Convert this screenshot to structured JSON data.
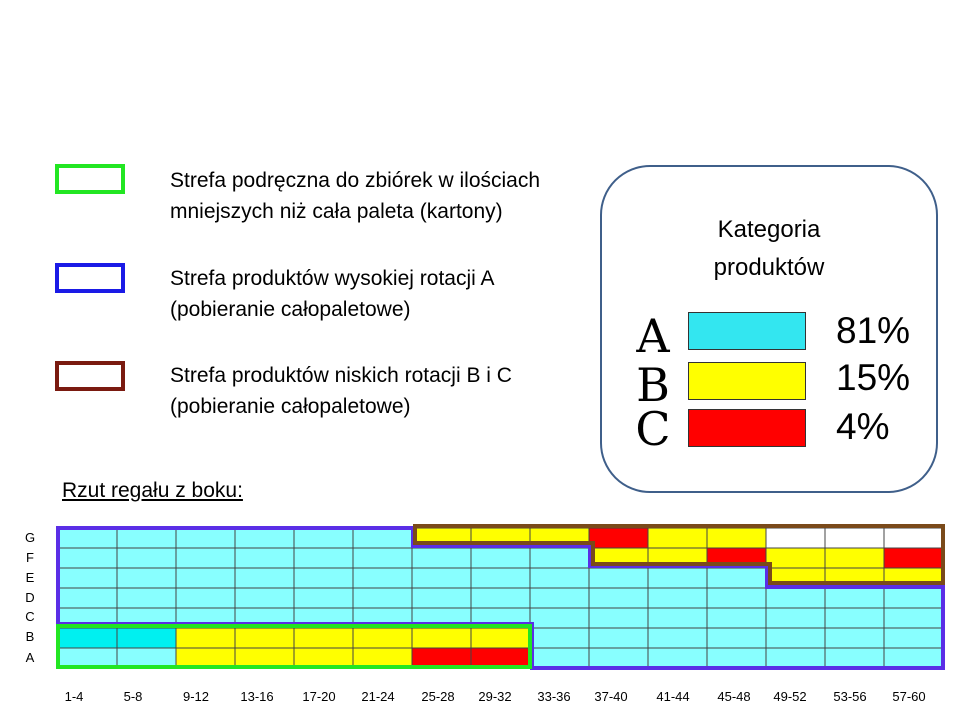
{
  "legend": [
    {
      "line1": "Strefa podręczna do zbiórek w ilościach",
      "line2": "mniejszych niż cała paleta (kartony)",
      "color": "#22e622"
    },
    {
      "line1": "Strefa produktów wysokiej rotacji A",
      "line2": "(pobieranie całopaletowe)",
      "color": "#1a1ae6"
    },
    {
      "line1": "Strefa produktów niskich rotacji B i C",
      "line2": "(pobieranie całopaletowe)",
      "color": "#7a1a10"
    }
  ],
  "categories": {
    "title_line1": "Kategoria",
    "title_line2": "produktów",
    "items": [
      {
        "letter": "A",
        "percent": "81%",
        "color": "#33e6f0"
      },
      {
        "letter": "B",
        "percent": "15%",
        "color": "#ffff00"
      },
      {
        "letter": "C",
        "percent": "4%",
        "color": "#ff0000"
      }
    ]
  },
  "rack": {
    "title": "Rzut regału z boku:",
    "row_labels": [
      "G",
      "F",
      "E",
      "D",
      "C",
      "B",
      "A"
    ],
    "column_labels": [
      "1-4",
      "5-8",
      "9-12",
      "13-16",
      "17-20",
      "21-24",
      "25-28",
      "29-32",
      "33-36",
      "37-40",
      "41-44",
      "45-48",
      "49-52",
      "53-56",
      "57-60"
    ],
    "cell_colors": {
      "A": "#88ffff",
      "B": "#ffff00",
      "C": "#ff0000",
      "A2": "#00f0f0",
      "empty": "#ffffff"
    },
    "grid": [
      [
        "A",
        "A",
        "A",
        "A",
        "A",
        "A",
        "B",
        "B",
        "B",
        "C",
        "B",
        "B",
        "empty",
        "empty",
        "empty"
      ],
      [
        "A",
        "A",
        "A",
        "A",
        "A",
        "A",
        "A",
        "A",
        "A",
        "B",
        "B",
        "C",
        "B",
        "B",
        "C"
      ],
      [
        "A",
        "A",
        "A",
        "A",
        "A",
        "A",
        "A",
        "A",
        "A",
        "A",
        "A",
        "A",
        "B",
        "B",
        "B"
      ],
      [
        "A",
        "A",
        "A",
        "A",
        "A",
        "A",
        "A",
        "A",
        "A",
        "A",
        "A",
        "A",
        "A",
        "A",
        "A"
      ],
      [
        "A",
        "A",
        "A",
        "A",
        "A",
        "A",
        "A",
        "A",
        "A",
        "A",
        "A",
        "A",
        "A",
        "A",
        "A"
      ],
      [
        "A2",
        "A2",
        "B",
        "B",
        "B",
        "B",
        "B",
        "B",
        "A",
        "A",
        "A",
        "A",
        "A",
        "A",
        "A"
      ],
      [
        "A",
        "A",
        "B",
        "B",
        "B",
        "B",
        "C",
        "C",
        "A",
        "A",
        "A",
        "A",
        "A",
        "A",
        "A"
      ]
    ],
    "zone_colors": {
      "green": "#22e622",
      "blue": "#5a2ee6",
      "brown": "#7a4a1a"
    }
  }
}
